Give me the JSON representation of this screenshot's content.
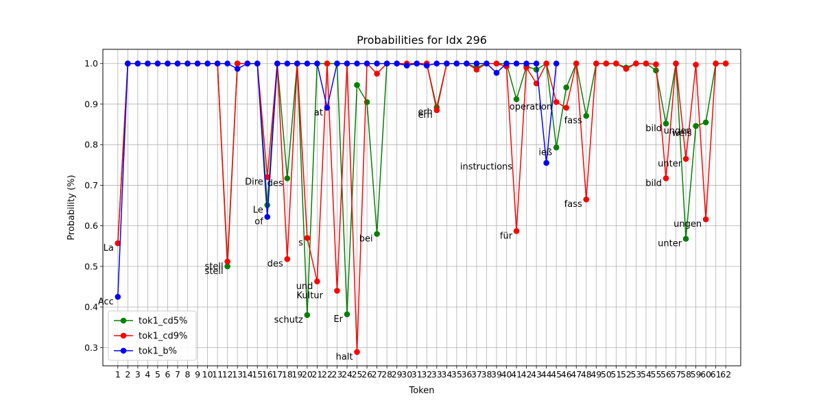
{
  "chart_data": {
    "type": "line",
    "title": "Probabilities for Idx 296",
    "xlabel": "Token",
    "ylabel": "Probability (%)",
    "xlim": [
      -0.5,
      63.5
    ],
    "ylim": [
      0.255,
      1.035
    ],
    "grid": true,
    "legend_position": "lower-left",
    "x_ticks": [
      1,
      2,
      3,
      4,
      5,
      6,
      7,
      8,
      9,
      10,
      11,
      12,
      13,
      14,
      15,
      16,
      17,
      18,
      19,
      20,
      21,
      22,
      23,
      24,
      25,
      26,
      27,
      28,
      29,
      30,
      31,
      32,
      33,
      34,
      35,
      36,
      37,
      38,
      39,
      40,
      41,
      42,
      43,
      44,
      45,
      46,
      47,
      48,
      49,
      50,
      51,
      52,
      53,
      54,
      55,
      56,
      57,
      58,
      59,
      60,
      61,
      62
    ],
    "y_ticks": [
      0.3,
      0.4,
      0.5,
      0.6,
      0.7,
      0.8,
      0.9,
      1.0
    ],
    "y_tick_labels": [
      "0.3",
      "0.4",
      "0.5",
      "0.6",
      "0.7",
      "0.8",
      "0.9",
      "1.0"
    ],
    "series": [
      {
        "name": "tok1_cd5%",
        "color": "#008000",
        "x": [
          1,
          2,
          3,
          4,
          5,
          6,
          7,
          8,
          9,
          10,
          11,
          12,
          13,
          14,
          15,
          16,
          17,
          18,
          19,
          20,
          21,
          22,
          23,
          24,
          25,
          26,
          27,
          28,
          29,
          30,
          31,
          32,
          33,
          34,
          35,
          36,
          37,
          38,
          39,
          40,
          41,
          42,
          43,
          44,
          45,
          46,
          47,
          48,
          49,
          50,
          51,
          52,
          53,
          54,
          55,
          56,
          57,
          58,
          59,
          60,
          61,
          62
        ],
        "values": [
          0.557,
          1.0,
          1.0,
          1.0,
          1.0,
          1.0,
          1.0,
          1.0,
          1.0,
          1.0,
          1.0,
          0.5,
          1.0,
          1.0,
          1.0,
          0.651,
          1.0,
          0.717,
          1.0,
          0.38,
          1.0,
          1.0,
          1.0,
          0.382,
          0.947,
          0.905,
          0.58,
          1.0,
          1.0,
          1.0,
          1.0,
          1.0,
          0.892,
          1.0,
          1.0,
          1.0,
          0.99,
          1.0,
          1.0,
          1.0,
          0.912,
          0.993,
          0.985,
          1.0,
          0.793,
          0.941,
          1.0,
          0.871,
          1.0,
          1.0,
          1.0,
          0.99,
          1.0,
          1.0,
          0.983,
          0.852,
          1.0,
          0.568,
          0.846,
          0.855,
          1.0,
          1.0
        ]
      },
      {
        "name": "tok1_cd9%",
        "color": "#ff0000",
        "x": [
          1,
          2,
          3,
          4,
          5,
          6,
          7,
          8,
          9,
          10,
          11,
          12,
          13,
          14,
          15,
          16,
          17,
          18,
          19,
          20,
          21,
          22,
          23,
          24,
          25,
          26,
          27,
          28,
          29,
          30,
          31,
          32,
          33,
          34,
          35,
          36,
          37,
          38,
          39,
          40,
          41,
          42,
          43,
          44,
          45,
          46,
          47,
          48,
          49,
          50,
          51,
          52,
          53,
          54,
          55,
          56,
          57,
          58,
          59,
          60,
          61,
          62
        ],
        "values": [
          0.557,
          1.0,
          1.0,
          1.0,
          1.0,
          1.0,
          1.0,
          1.0,
          1.0,
          1.0,
          1.0,
          0.512,
          1.0,
          1.0,
          1.0,
          0.72,
          1.0,
          0.518,
          1.0,
          0.57,
          0.463,
          1.0,
          0.44,
          1.0,
          0.289,
          1.0,
          0.975,
          1.0,
          1.0,
          1.0,
          1.0,
          1.0,
          0.885,
          1.0,
          1.0,
          1.0,
          0.985,
          1.0,
          1.0,
          0.993,
          0.587,
          0.99,
          0.951,
          1.0,
          0.905,
          0.891,
          1.0,
          0.665,
          1.0,
          1.0,
          1.0,
          0.987,
          1.0,
          1.0,
          0.998,
          0.717,
          1.0,
          0.765,
          0.997,
          0.616,
          1.0,
          1.0
        ]
      },
      {
        "name": "tok1_b%",
        "color": "#0000ff",
        "x": [
          1,
          2,
          3,
          4,
          5,
          6,
          7,
          8,
          9,
          10,
          11,
          12,
          13,
          14,
          15,
          16,
          17,
          18,
          19,
          20,
          21,
          22,
          23,
          24,
          25,
          26,
          27,
          28,
          29,
          30,
          31,
          32,
          33,
          34,
          35,
          36,
          37,
          38,
          39,
          40,
          41,
          42,
          43,
          44,
          45
        ],
        "values": [
          0.425,
          1.0,
          1.0,
          1.0,
          1.0,
          1.0,
          1.0,
          1.0,
          1.0,
          1.0,
          1.0,
          1.0,
          0.987,
          1.0,
          1.0,
          0.622,
          1.0,
          1.0,
          1.0,
          1.0,
          1.0,
          0.891,
          1.0,
          1.0,
          1.0,
          1.0,
          1.0,
          1.0,
          1.0,
          0.995,
          1.0,
          0.995,
          1.0,
          1.0,
          1.0,
          1.0,
          1.0,
          1.0,
          0.977,
          1.0,
          1.0,
          1.0,
          1.0,
          0.755,
          1.0
        ]
      }
    ],
    "annotations": [
      {
        "text": "La",
        "x": 1,
        "y": 0.557
      },
      {
        "text": "Acc",
        "x": 1,
        "y": 0.425
      },
      {
        "text": "stell",
        "x": 12,
        "y": 0.512
      },
      {
        "text": "stell",
        "x": 12,
        "y": 0.5
      },
      {
        "text": "Dire",
        "x": 16,
        "y": 0.72
      },
      {
        "text": "Le",
        "x": 16,
        "y": 0.651
      },
      {
        "text": "of",
        "x": 16,
        "y": 0.622
      },
      {
        "text": "des",
        "x": 18,
        "y": 0.717
      },
      {
        "text": "des",
        "x": 18,
        "y": 0.518
      },
      {
        "text": "s",
        "x": 20,
        "y": 0.57
      },
      {
        "text": "schutz",
        "x": 20,
        "y": 0.38
      },
      {
        "text": "und",
        "x": 21,
        "y": 0.463
      },
      {
        "text": "Kultur",
        "x": 22,
        "y": 0.44
      },
      {
        "text": "at",
        "x": 22,
        "y": 0.891
      },
      {
        "text": "Er",
        "x": 24,
        "y": 0.382
      },
      {
        "text": "halt",
        "x": 25,
        "y": 0.289
      },
      {
        "text": "bei",
        "x": 27,
        "y": 0.58
      },
      {
        "text": "erh",
        "x": 33,
        "y": 0.892
      },
      {
        "text": "erh",
        "x": 33,
        "y": 0.885
      },
      {
        "text": "operation",
        "x": 45,
        "y": 0.905
      },
      {
        "text": "instructions",
        "x": 41,
        "y": 0.757
      },
      {
        "text": "für",
        "x": 41,
        "y": 0.587
      },
      {
        "text": "ieß",
        "x": 45,
        "y": 0.793
      },
      {
        "text": "fass",
        "x": 48,
        "y": 0.871
      },
      {
        "text": "fass",
        "x": 48,
        "y": 0.665
      },
      {
        "text": "bild",
        "x": 56,
        "y": 0.852
      },
      {
        "text": "bild",
        "x": 56,
        "y": 0.717
      },
      {
        "text": "unter",
        "x": 58,
        "y": 0.765
      },
      {
        "text": "unter",
        "x": 58,
        "y": 0.568
      },
      {
        "text": "ungen",
        "x": 59,
        "y": 0.846
      },
      {
        "text": "weis",
        "x": 59,
        "y": 0.84
      },
      {
        "text": "ungen",
        "x": 60,
        "y": 0.616
      }
    ]
  }
}
